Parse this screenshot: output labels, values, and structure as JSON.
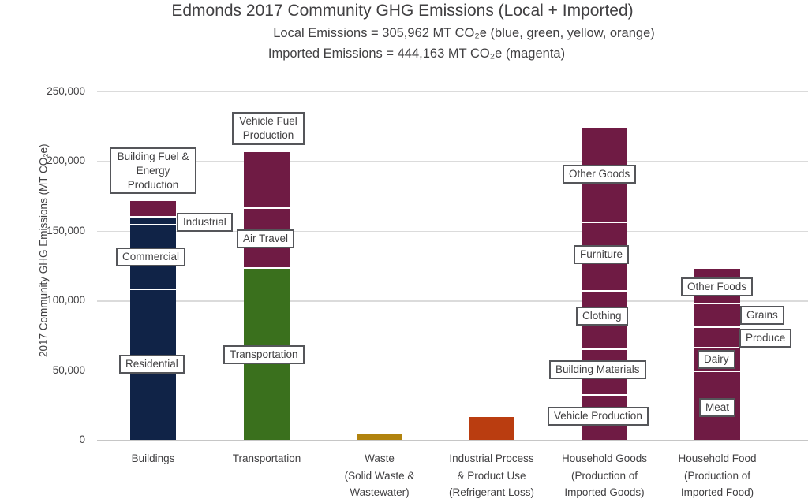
{
  "header": {
    "title": "Edmonds 2017 Community GHG Emissions (Local + Imported)",
    "subtitle_local": "Local Emissions = 305,962 MT CO₂e (blue, green, yellow, orange)",
    "subtitle_imported": "Imported Emissions = 444,163 MT CO₂e (magenta)"
  },
  "chart_data": {
    "type": "bar",
    "stacked": true,
    "title": "Edmonds 2017 Community GHG Emissions (Local + Imported)",
    "subtitles": [
      "Local Emissions = 305,962 MT CO₂e (blue, green, yellow, orange)",
      "Imported Emissions = 444,163 MT CO₂e (magenta)"
    ],
    "ylabel": "2017 Community GHG Emissions (MT CO₂e)",
    "xlabel": "",
    "ylim": [
      0,
      250000
    ],
    "ytick_values": [
      0,
      50000,
      100000,
      150000,
      200000,
      250000
    ],
    "ytick_labels": [
      "0",
      "50,000",
      "100,000",
      "150,000",
      "200,000",
      "250,000"
    ],
    "grid": true,
    "legend_position": "none",
    "totals": {
      "local_mt_co2e": 305962,
      "imported_mt_co2e": 444163
    },
    "colors": {
      "local_buildings_blue": "#102347",
      "local_transportation_green": "#3A701D",
      "local_waste_yellow": "#B1830E",
      "local_industrial_orange": "#BA3D10",
      "imported_magenta": "#6F1B44",
      "segment_separator": "#FFFFFF",
      "text_gray": "#414042",
      "gridline_gray": "#DBDBDB"
    },
    "categories": [
      {
        "label_lines": [
          "Buildings"
        ],
        "segments": [
          {
            "name": "Residential",
            "value": 108000,
            "color": "#102347",
            "type": "local"
          },
          {
            "name": "Commercial",
            "value": 46000,
            "color": "#102347",
            "type": "local"
          },
          {
            "name": "Industrial",
            "value": 6000,
            "color": "#102347",
            "type": "local"
          },
          {
            "name": "Building Fuel & Energy Production",
            "value": 12000,
            "color": "#6F1B44",
            "type": "imported"
          }
        ]
      },
      {
        "label_lines": [
          "Transportation"
        ],
        "segments": [
          {
            "name": "Transportation",
            "value": 123000,
            "color": "#3A701D",
            "type": "local"
          },
          {
            "name": "Air Travel",
            "value": 43000,
            "color": "#6F1B44",
            "type": "imported"
          },
          {
            "name": "Vehicle Fuel Production",
            "value": 41000,
            "color": "#6F1B44",
            "type": "imported"
          }
        ]
      },
      {
        "label_lines": [
          "Waste",
          "(Solid Waste &",
          "Wastewater)"
        ],
        "segments": [
          {
            "name": "Waste (Solid Waste & Wastewater)",
            "value": 5000,
            "color": "#B1830E",
            "type": "local"
          }
        ]
      },
      {
        "label_lines": [
          "Industrial Process",
          "& Product Use",
          "(Refrigerant Loss)"
        ],
        "segments": [
          {
            "name": "Industrial Process & Product Use (Refrigerant Loss)",
            "value": 17000,
            "color": "#BA3D10",
            "type": "local"
          }
        ]
      },
      {
        "label_lines": [
          "Household Goods",
          "(Production of",
          "Imported Goods)"
        ],
        "segments": [
          {
            "name": "Vehicle Production",
            "value": 32000,
            "color": "#6F1B44",
            "type": "imported"
          },
          {
            "name": "Building Materials",
            "value": 33000,
            "color": "#6F1B44",
            "type": "imported"
          },
          {
            "name": "Clothing",
            "value": 42000,
            "color": "#6F1B44",
            "type": "imported"
          },
          {
            "name": "Furniture",
            "value": 49000,
            "color": "#6F1B44",
            "type": "imported"
          },
          {
            "name": "Other Goods",
            "value": 68000,
            "color": "#6F1B44",
            "type": "imported"
          }
        ]
      },
      {
        "label_lines": [
          "Household Food",
          "(Production of",
          "Imported Food)"
        ],
        "segments": [
          {
            "name": "Meat",
            "value": 49000,
            "color": "#6F1B44",
            "type": "imported"
          },
          {
            "name": "Dairy",
            "value": 17000,
            "color": "#6F1B44",
            "type": "imported"
          },
          {
            "name": "Produce",
            "value": 15000,
            "color": "#6F1B44",
            "type": "imported"
          },
          {
            "name": "Grains",
            "value": 17000,
            "color": "#6F1B44",
            "type": "imported"
          },
          {
            "name": "Other Foods",
            "value": 25000,
            "color": "#6F1B44",
            "type": "imported"
          }
        ]
      }
    ],
    "annotations": [
      {
        "text": "Building Fuel &\nEnergy\nProduction"
      },
      {
        "text": "Industrial"
      },
      {
        "text": "Commercial"
      },
      {
        "text": "Residential"
      },
      {
        "text": "Vehicle Fuel\nProduction"
      },
      {
        "text": "Air Travel"
      },
      {
        "text": "Transportation"
      },
      {
        "text": "Other Goods"
      },
      {
        "text": "Furniture"
      },
      {
        "text": "Clothing"
      },
      {
        "text": "Building Materials"
      },
      {
        "text": "Vehicle Production"
      },
      {
        "text": "Other Foods"
      },
      {
        "text": "Grains"
      },
      {
        "text": "Produce"
      },
      {
        "text": "Dairy"
      },
      {
        "text": "Meat"
      }
    ]
  }
}
